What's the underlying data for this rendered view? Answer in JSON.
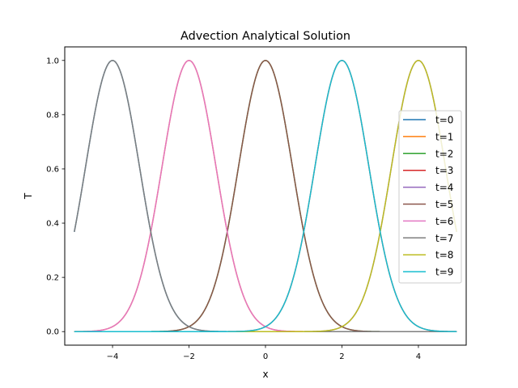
{
  "chart_data": {
    "type": "line",
    "title": "Advection Analytical Solution",
    "xlabel": "x",
    "ylabel": "T",
    "xlim": [
      -5.25,
      5.25
    ],
    "ylim": [
      -0.05,
      1.05
    ],
    "xticks": [
      -4,
      -2,
      0,
      2,
      4
    ],
    "xtick_labels": [
      "−4",
      "−2",
      "0",
      "2",
      "4"
    ],
    "yticks": [
      0.0,
      0.2,
      0.4,
      0.6,
      0.8,
      1.0
    ],
    "ytick_labels": [
      "0.0",
      "0.2",
      "0.4",
      "0.6",
      "0.8",
      "1.0"
    ],
    "grid": false,
    "legend_position": "center-right",
    "x_range": [
      -5,
      5
    ],
    "series": [
      {
        "name": "t=0",
        "color": "#1f77b4",
        "peak_x": -4,
        "amplitude": 1.0
      },
      {
        "name": "t=1",
        "color": "#ff7f0e",
        "peak_x": -2,
        "amplitude": 1.0
      },
      {
        "name": "t=2",
        "color": "#2ca02c",
        "peak_x": 0,
        "amplitude": 1.0
      },
      {
        "name": "t=3",
        "color": "#d62728",
        "peak_x": 2,
        "amplitude": 1.0
      },
      {
        "name": "t=4",
        "color": "#9467bd",
        "peak_x": 4,
        "amplitude": 1.0
      },
      {
        "name": "t=5",
        "color": "#8c564b",
        "peak_x": 0,
        "amplitude": 1.0
      },
      {
        "name": "t=6",
        "color": "#e377c2",
        "peak_x": -2,
        "amplitude": 1.0
      },
      {
        "name": "t=7",
        "color": "#7f7f7f",
        "peak_x": -4,
        "amplitude": 1.0
      },
      {
        "name": "t=8",
        "color": "#bcbd22",
        "peak_x": 4,
        "amplitude": 1.0
      },
      {
        "name": "t=9",
        "color": "#17becf",
        "peak_x": 2,
        "amplitude": 1.0
      }
    ]
  }
}
